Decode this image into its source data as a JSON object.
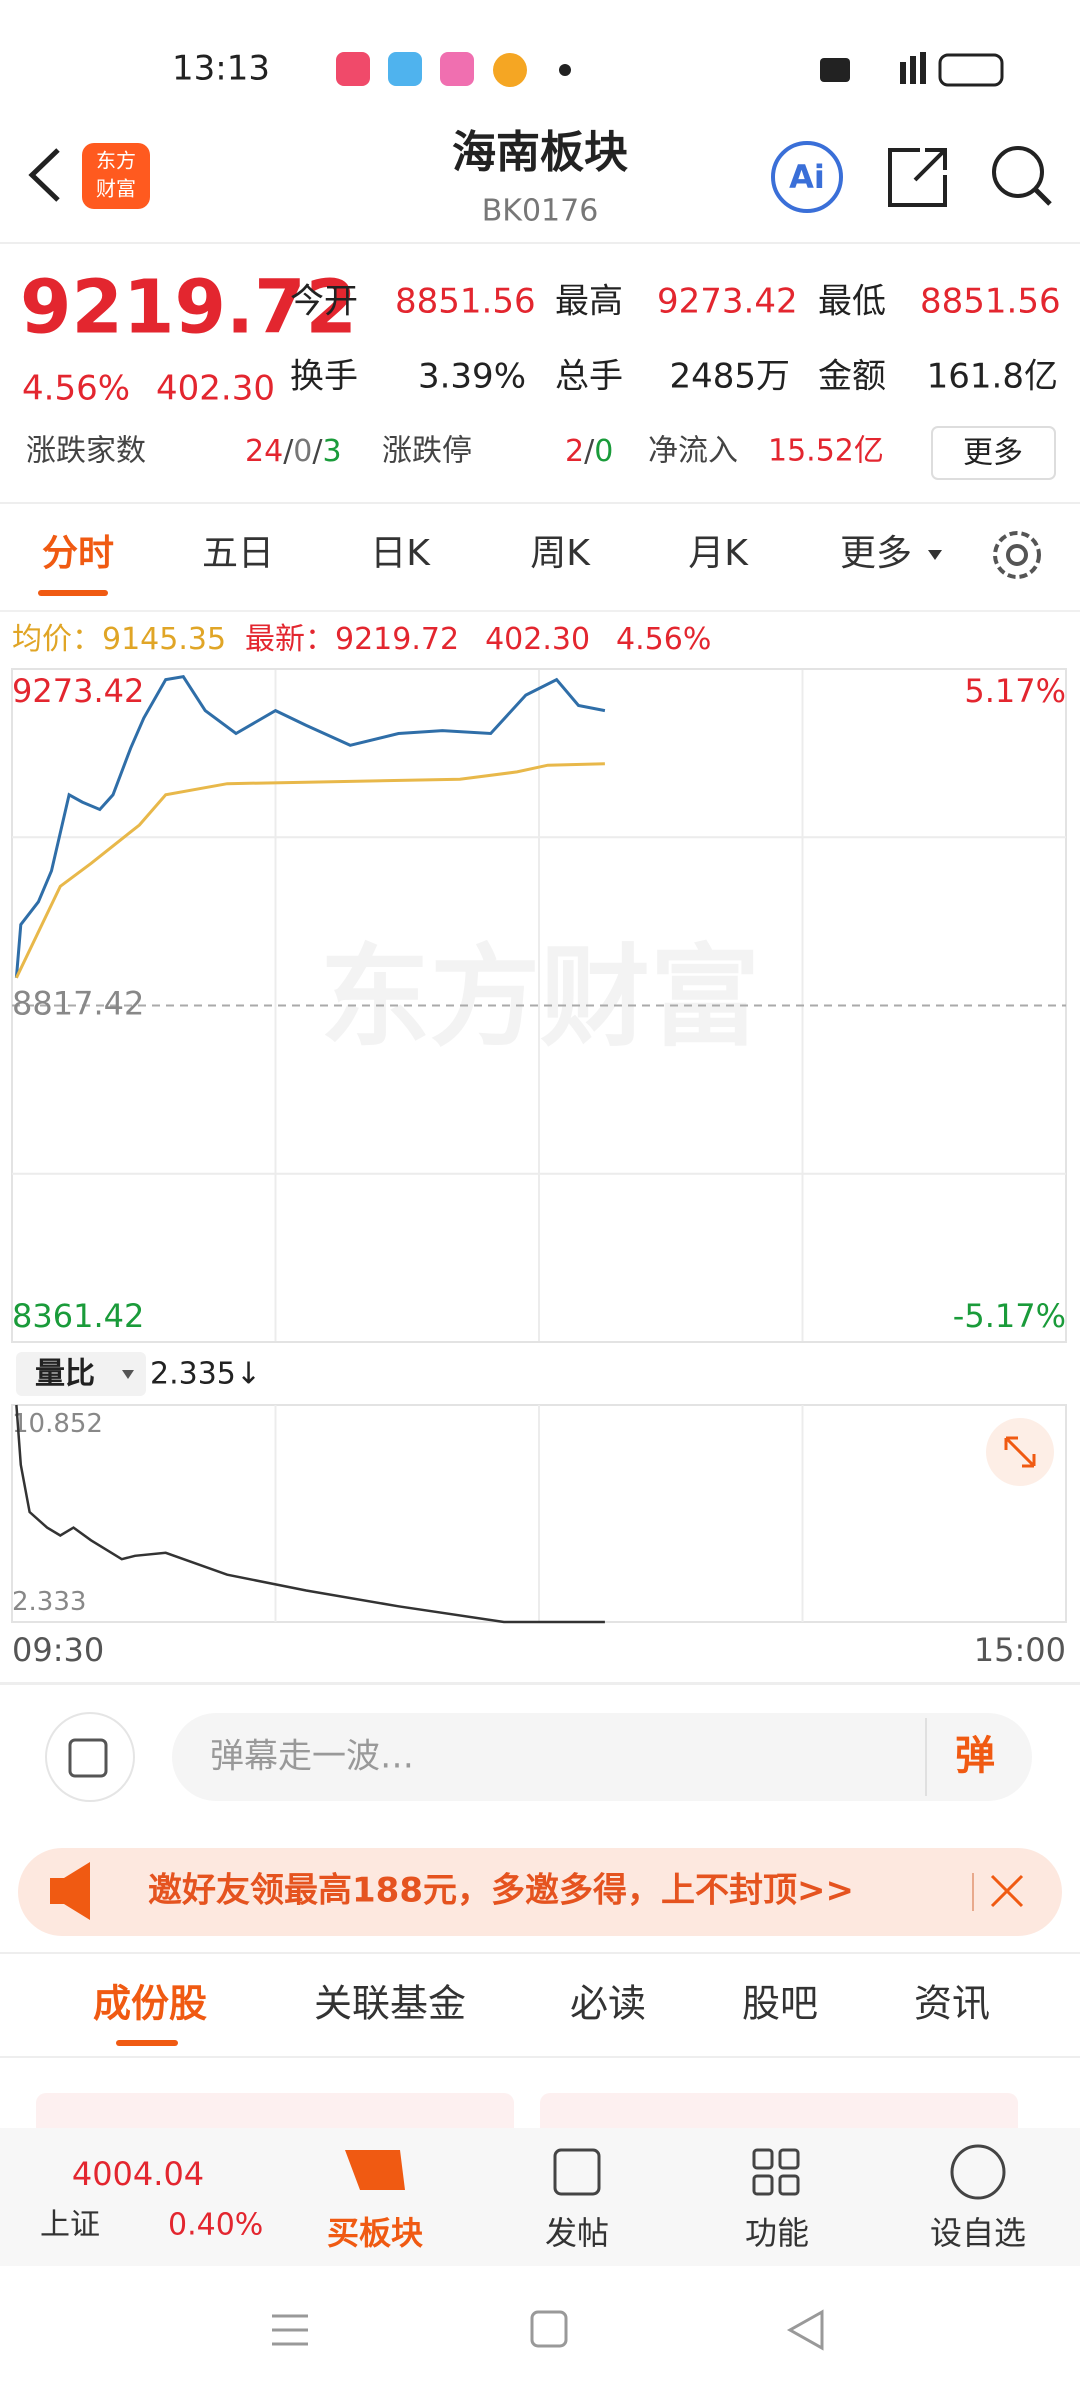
{
  "status_bar": {
    "time": "13:13"
  },
  "header": {
    "logo": [
      "东方",
      "财富"
    ],
    "title": "海南板块",
    "code": "BK0176",
    "ai": "Ai"
  },
  "quote": {
    "price": "9219.72",
    "change_pct": "4.56%",
    "change": "402.30",
    "stats": [
      {
        "label": "今开",
        "value": "8851.56"
      },
      {
        "label": "最高",
        "value": "9273.42"
      },
      {
        "label": "最低",
        "value": "8851.56"
      },
      {
        "label": "换手",
        "value": "3.39%"
      },
      {
        "label": "总手",
        "value": "2485万"
      },
      {
        "label": "金额",
        "value": "161.8亿"
      }
    ],
    "breadth": {
      "label": "涨跌家数",
      "values": [
        "24",
        "0",
        "3"
      ],
      "sep": "/"
    },
    "limit": {
      "label": "涨跌停",
      "values": [
        "2",
        "0"
      ]
    },
    "net_inflow": {
      "label": "净流入",
      "value": "15.52亿"
    },
    "more": "更多"
  },
  "tabs": [
    "分时",
    "五日",
    "日K",
    "周K",
    "月K",
    "更多"
  ],
  "info": {
    "avg_label": "均价：",
    "avg": "9145.35",
    "latest_label": "最新：",
    "latest": "9219.72",
    "change": "402.30",
    "pct": "4.56%"
  },
  "watermark": "东方财富",
  "chart_data": [
    {
      "type": "line",
      "xlim": [
        0,
        240
      ],
      "ylim": [
        8361.42,
        9273.42
      ],
      "yticks": [
        8361.42,
        8817.42,
        9273.42
      ],
      "y2lim": [
        -5.17,
        5.17
      ],
      "y2ticks": [
        {
          "value": -5.17,
          "label": "-5.17%"
        },
        {
          "value": 5.17,
          "label": "5.17%"
        }
      ],
      "grid": true,
      "series": [
        {
          "color": "#2f6ea8",
          "x": [
            1,
            2,
            6,
            9,
            13,
            16,
            20,
            23,
            27,
            30,
            35,
            39,
            44,
            51,
            60,
            67,
            77,
            88,
            98,
            109,
            117,
            124,
            129,
            135
          ],
          "values": [
            8855,
            8927,
            8958,
            9000,
            9103,
            9093,
            9083,
            9103,
            9166,
            9207,
            9259,
            9263,
            9217,
            9186,
            9217,
            9197,
            9170,
            9186,
            9190,
            9186,
            9238,
            9259,
            9224,
            9217
          ]
        },
        {
          "color": "#e8b84a",
          "x": [
            1,
            11,
            18,
            29,
            35,
            49,
            67,
            102,
            115,
            122,
            135
          ],
          "values": [
            8855,
            8979,
            9010,
            9062,
            9103,
            9118,
            9120,
            9124,
            9134,
            9143,
            9145
          ]
        }
      ]
    },
    {
      "type": "line",
      "title": "量比",
      "current": "2.335↓",
      "xlim": [
        0,
        240
      ],
      "ylim": [
        2.333,
        10.852
      ],
      "yticks": [
        2.333,
        10.852
      ],
      "xticks": [
        {
          "value": 0,
          "label": "09:30"
        },
        {
          "value": 240,
          "label": "15:00"
        }
      ],
      "series": [
        {
          "color": "#333333",
          "x": [
            1,
            2,
            4,
            8,
            11,
            14,
            18,
            25,
            28,
            35,
            49,
            67,
            88,
            112,
            135
          ],
          "values": [
            10.852,
            8.5,
            6.65,
            6.04,
            5.73,
            6.04,
            5.54,
            4.8,
            4.93,
            5.05,
            4.19,
            3.57,
            2.95,
            2.333,
            2.333
          ]
        }
      ]
    }
  ],
  "comment": {
    "placeholder": "弹幕走一波…",
    "button": "弹"
  },
  "banner": "邀好友领最高188元，多邀多得，上不封顶>>",
  "section_tabs": [
    "成份股",
    "关联基金",
    "必读",
    "股吧",
    "资讯"
  ],
  "bottom_bar": {
    "index_value": "4004.04",
    "index_name": "上证",
    "index_pct": "0.40%",
    "items": [
      "买板块",
      "发帖",
      "功能",
      "设自选"
    ]
  }
}
